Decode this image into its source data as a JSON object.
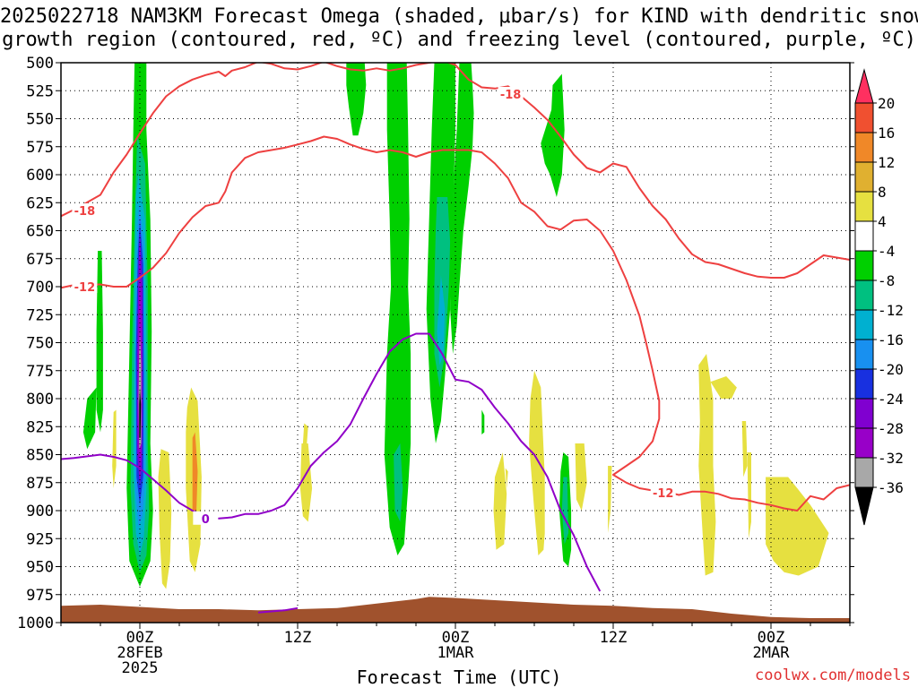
{
  "title": {
    "line1": "2025022718 NAM3KM Forecast Omega (shaded, μbar/s) for KIND with dendritic snow",
    "line2": "growth region (contoured, red, ºC) and freezing level (contoured, purple, ºC)"
  },
  "xlabel": "Forecast Time (UTC)",
  "credit": "coolwx.com/models",
  "chart_data": {
    "type": "heatmap",
    "title": "2025022718 NAM3KM Forecast Omega (shaded, μbar/s) for KIND with dendritic snow growth region (contoured, red, ºC) and freezing level (contoured, purple, ºC)",
    "xlabel": "Forecast Time (UTC)",
    "ylabel": "",
    "x_range_hours": [
      -6,
      54
    ],
    "y_range_hPa": [
      1000,
      500
    ],
    "y_axis_reversed": true,
    "grid": true,
    "x_ticks": [
      {
        "hour": 0,
        "lines": [
          "00Z",
          "28FEB",
          "2025"
        ]
      },
      {
        "hour": 12,
        "lines": [
          "12Z"
        ]
      },
      {
        "hour": 24,
        "lines": [
          "00Z",
          "1MAR"
        ]
      },
      {
        "hour": 36,
        "lines": [
          "12Z"
        ]
      },
      {
        "hour": 48,
        "lines": [
          "00Z",
          "2MAR"
        ]
      }
    ],
    "y_ticks": [
      500,
      525,
      550,
      575,
      600,
      625,
      650,
      675,
      700,
      725,
      750,
      775,
      800,
      825,
      850,
      875,
      900,
      925,
      950,
      975,
      1000
    ],
    "colorbar": {
      "unit": "μbar/s",
      "labels": [
        "20",
        "16",
        "12",
        "8",
        "4",
        "-4",
        "-8",
        "-12",
        "-16",
        "-20",
        "-24",
        "-28",
        "-32",
        "-36"
      ],
      "colors": [
        "#ff3060",
        "#f05030",
        "#f08828",
        "#e0b030",
        "#e6e040",
        "#ffffff",
        "#00d000",
        "#00c080",
        "#00b0d0",
        "#1890f0",
        "#1830e0",
        "#8000d0",
        "#9800c8",
        "#a8a8a8",
        "#000000"
      ]
    },
    "dgz_contours": [
      {
        "level": -18,
        "label": "-18",
        "color": "#ee4040",
        "points": [
          [
            -6,
            637
          ],
          [
            -4.8,
            630
          ],
          [
            -3,
            618
          ],
          [
            -2,
            598
          ],
          [
            -1,
            582
          ],
          [
            0,
            563
          ],
          [
            1,
            545
          ],
          [
            2,
            530
          ],
          [
            3,
            521
          ],
          [
            4,
            515
          ],
          [
            5,
            511
          ],
          [
            6,
            508
          ],
          [
            6.5,
            512
          ],
          [
            7,
            507
          ],
          [
            8,
            504
          ],
          [
            9,
            499
          ],
          [
            10,
            501
          ],
          [
            11,
            505
          ],
          [
            12,
            506
          ],
          [
            13,
            503
          ],
          [
            14,
            499
          ],
          [
            15,
            503
          ],
          [
            16,
            506
          ],
          [
            17,
            507
          ],
          [
            18,
            505
          ],
          [
            19,
            507
          ],
          [
            20,
            505
          ],
          [
            21,
            502
          ],
          [
            22,
            500
          ],
          [
            23,
            498
          ],
          [
            24,
            502
          ],
          [
            25,
            515
          ],
          [
            26,
            522
          ],
          [
            27,
            523
          ],
          [
            28,
            521
          ],
          [
            29,
            530
          ],
          [
            30,
            540
          ],
          [
            31,
            551
          ],
          [
            32,
            566
          ],
          [
            33,
            582
          ],
          [
            34,
            594
          ],
          [
            35,
            598
          ],
          [
            36,
            590
          ],
          [
            37,
            593
          ],
          [
            38,
            612
          ],
          [
            39,
            628
          ],
          [
            40,
            640
          ],
          [
            41,
            657
          ],
          [
            42,
            671
          ],
          [
            43,
            678
          ],
          [
            44,
            680
          ],
          [
            45,
            684
          ],
          [
            46,
            688
          ],
          [
            47,
            691
          ],
          [
            48,
            692
          ],
          [
            49,
            692
          ],
          [
            50,
            688
          ],
          [
            51,
            680
          ],
          [
            52,
            672
          ],
          [
            53,
            674
          ],
          [
            54,
            676
          ]
        ]
      },
      {
        "level": -12,
        "label": "-12",
        "color": "#ee4040",
        "points": [
          [
            -6,
            701
          ],
          [
            -4.8,
            698
          ],
          [
            -3,
            698
          ],
          [
            -2,
            700
          ],
          [
            -1,
            700
          ],
          [
            0,
            692
          ],
          [
            1,
            683
          ],
          [
            2,
            670
          ],
          [
            3,
            652
          ],
          [
            4,
            638
          ],
          [
            5,
            628
          ],
          [
            6,
            625
          ],
          [
            6.5,
            615
          ],
          [
            7,
            598
          ],
          [
            8,
            585
          ],
          [
            9,
            580
          ],
          [
            10,
            578
          ],
          [
            11,
            576
          ],
          [
            12,
            573
          ],
          [
            13,
            570
          ],
          [
            14,
            566
          ],
          [
            15,
            568
          ],
          [
            16,
            573
          ],
          [
            17,
            577
          ],
          [
            18,
            580
          ],
          [
            19,
            578
          ],
          [
            20,
            580
          ],
          [
            21,
            584
          ],
          [
            22,
            580
          ],
          [
            23,
            578
          ],
          [
            24,
            578
          ],
          [
            25,
            578
          ],
          [
            26,
            580
          ],
          [
            27,
            590
          ],
          [
            28,
            603
          ],
          [
            29,
            625
          ],
          [
            30,
            633
          ],
          [
            31,
            646
          ],
          [
            32,
            649
          ],
          [
            33,
            641
          ],
          [
            34,
            640
          ],
          [
            35,
            650
          ],
          [
            36,
            668
          ],
          [
            37,
            694
          ],
          [
            38,
            726
          ],
          [
            38.5,
            750
          ],
          [
            39,
            775
          ],
          [
            39.5,
            802
          ],
          [
            39.5,
            818
          ],
          [
            39,
            838
          ],
          [
            38,
            852
          ],
          [
            37,
            860
          ],
          [
            36,
            868
          ],
          [
            37,
            875
          ],
          [
            38,
            880
          ],
          [
            39,
            882
          ],
          [
            40,
            883
          ],
          [
            41,
            886
          ],
          [
            42,
            883
          ],
          [
            43,
            883
          ],
          [
            44,
            885
          ],
          [
            45,
            889
          ],
          [
            46,
            890
          ],
          [
            47,
            893
          ],
          [
            48,
            895
          ],
          [
            49,
            898
          ],
          [
            50,
            900
          ],
          [
            51,
            887
          ],
          [
            52,
            890
          ],
          [
            53,
            880
          ],
          [
            54,
            877
          ]
        ]
      }
    ],
    "freezing_level": {
      "level": 0,
      "label": "0",
      "color": "#9000c8",
      "points": [
        [
          -6,
          854
        ],
        [
          -5,
          853
        ],
        [
          -3,
          850
        ],
        [
          -2,
          852
        ],
        [
          -1,
          855
        ],
        [
          0,
          862
        ],
        [
          1,
          872
        ],
        [
          2,
          882
        ],
        [
          3,
          893
        ],
        [
          4,
          900
        ],
        [
          5,
          905
        ],
        [
          6,
          907
        ],
        [
          7,
          906
        ],
        [
          8,
          903
        ],
        [
          9,
          903
        ],
        [
          10,
          900
        ],
        [
          11,
          895
        ],
        [
          12,
          880
        ],
        [
          13,
          860
        ],
        [
          14,
          848
        ],
        [
          15,
          838
        ],
        [
          16,
          823
        ],
        [
          17,
          800
        ],
        [
          18,
          778
        ],
        [
          19,
          758
        ],
        [
          20,
          747
        ],
        [
          21,
          742
        ],
        [
          22,
          742
        ],
        [
          23,
          760
        ],
        [
          24,
          783
        ],
        [
          25,
          785
        ],
        [
          26,
          792
        ],
        [
          27,
          808
        ],
        [
          28,
          822
        ],
        [
          29,
          838
        ],
        [
          30,
          850
        ],
        [
          31,
          870
        ],
        [
          32,
          900
        ],
        [
          33,
          922
        ],
        [
          34,
          950
        ],
        [
          35,
          972
        ]
      ],
      "segment2": [
        [
          9,
          991
        ],
        [
          10,
          990
        ],
        [
          11,
          989
        ],
        [
          12,
          987
        ]
      ]
    },
    "terrain": {
      "color": "#a0522d",
      "points": [
        [
          -6,
          985
        ],
        [
          -3,
          984
        ],
        [
          0,
          986
        ],
        [
          3,
          988
        ],
        [
          6,
          988
        ],
        [
          9,
          989
        ],
        [
          12,
          988
        ],
        [
          15,
          987
        ],
        [
          18,
          983
        ],
        [
          21,
          979
        ],
        [
          22,
          977
        ],
        [
          24,
          978
        ],
        [
          27,
          980
        ],
        [
          30,
          982
        ],
        [
          33,
          984
        ],
        [
          36,
          985
        ],
        [
          39,
          987
        ],
        [
          42,
          988
        ],
        [
          45,
          992
        ],
        [
          48,
          995
        ],
        [
          51,
          996
        ],
        [
          54,
          996
        ]
      ]
    },
    "omega_features": [
      {
        "label": "strong ascent 28FEB 00Z",
        "hour": 0,
        "p_top": 500,
        "p_bottom": 965,
        "min_value": -36
      },
      {
        "label": "ascent 1MAR 00Z column",
        "hour": 23,
        "p_top": 500,
        "p_bottom": 935,
        "min_value": -16
      },
      {
        "label": "ascent 1MAR 06Z column",
        "hour": 28,
        "p_top": 560,
        "p_bottom": 620,
        "min_value": -4
      },
      {
        "label": "ascent 1MAR 11Z",
        "hour": 33,
        "p_top": 858,
        "p_bottom": 950,
        "min_value": -12
      }
    ]
  }
}
